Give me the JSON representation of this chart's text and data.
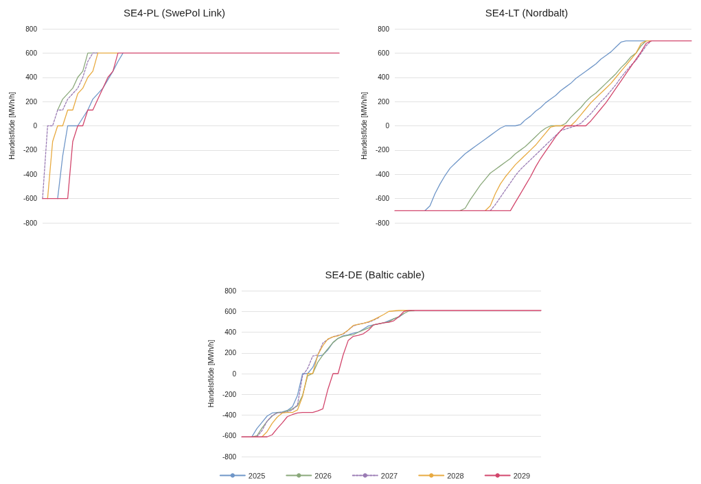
{
  "chart_data": [
    {
      "type": "line",
      "title": "SE4-PL (SwePol Link)",
      "ylabel": "Handelsflöde [MWh/h]",
      "ylim": [
        -800,
        800
      ],
      "yticks": [
        -800,
        -600,
        -400,
        -200,
        0,
        200,
        400,
        600,
        800
      ],
      "grid": "y",
      "tick_labels": "y",
      "marker": "none",
      "categories": [
        null,
        null,
        null,
        null,
        null,
        null,
        null,
        null,
        null,
        null,
        null,
        null,
        null,
        null,
        null,
        null,
        null,
        null,
        null,
        null,
        null,
        null,
        null,
        null,
        null,
        null,
        null,
        null,
        null,
        null,
        null,
        null,
        null,
        null,
        null,
        null,
        null,
        null,
        null,
        null,
        null,
        null,
        null,
        null,
        null,
        null,
        null,
        null,
        null,
        null,
        null,
        null,
        null,
        null,
        null,
        null,
        null,
        null,
        null,
        null
      ],
      "series": [
        {
          "color": "#6f96c8",
          "values": [
            null,
            null,
            null,
            -600,
            -250,
            0,
            0,
            0,
            null,
            130,
            220,
            265,
            310,
            null,
            450,
            530,
            600,
            null,
            null,
            null,
            null,
            null,
            null,
            null,
            null,
            null,
            null,
            null,
            null,
            null,
            null,
            null,
            null,
            null,
            null,
            null,
            null,
            null,
            null,
            null,
            null,
            null,
            null,
            null,
            null,
            null,
            null,
            null,
            null,
            null,
            null,
            null,
            null,
            null,
            null,
            null,
            null,
            null,
            null,
            null
          ]
        },
        {
          "color": "#8aa87a",
          "values": [
            null,
            null,
            null,
            130,
            220,
            265,
            310,
            400,
            450,
            600,
            600,
            600,
            null,
            null,
            null,
            null,
            null,
            null,
            null,
            null,
            null,
            null,
            null,
            null,
            null,
            null,
            null,
            null,
            null,
            null,
            null,
            null,
            null,
            null,
            null,
            null,
            null,
            null,
            null,
            null,
            null,
            null,
            null,
            null,
            null,
            null,
            null,
            null,
            null,
            null,
            null,
            null,
            null,
            null,
            null,
            null,
            null,
            null,
            null,
            null
          ]
        },
        {
          "color": "#9a7bb4",
          "line_style": "dashed",
          "values": [
            -600,
            0,
            0,
            130,
            130,
            220,
            265,
            310,
            400,
            530,
            600,
            600,
            null,
            null,
            null,
            null,
            null,
            null,
            null,
            null,
            null,
            null,
            null,
            null,
            null,
            null,
            null,
            null,
            null,
            null,
            null,
            null,
            null,
            null,
            null,
            null,
            null,
            null,
            null,
            null,
            null,
            null,
            null,
            null,
            null,
            null,
            null,
            null,
            null,
            null,
            null,
            null,
            null,
            null,
            null,
            null,
            null,
            null,
            null,
            null
          ]
        },
        {
          "color": "#e8aa40",
          "values": [
            null,
            -600,
            -130,
            0,
            0,
            130,
            130,
            265,
            310,
            400,
            450,
            600,
            600,
            600,
            600,
            600,
            null,
            null,
            null,
            null,
            null,
            null,
            null,
            null,
            null,
            null,
            null,
            null,
            null,
            null,
            null,
            null,
            null,
            null,
            null,
            null,
            null,
            null,
            null,
            null,
            null,
            null,
            null,
            null,
            null,
            null,
            null,
            null,
            null,
            null,
            null,
            null,
            null,
            null,
            null,
            null,
            null,
            null,
            null,
            null
          ]
        },
        {
          "color": "#d2466c",
          "values": [
            -600,
            -600,
            -600,
            -600,
            -600,
            -600,
            -130,
            0,
            0,
            130,
            130,
            220,
            310,
            400,
            450,
            600,
            600,
            600,
            600,
            600,
            600,
            600,
            600,
            600,
            600,
            600,
            600,
            600,
            600,
            600,
            600,
            600,
            600,
            600,
            600,
            600,
            600,
            600,
            600,
            600,
            600,
            600,
            600,
            600,
            600,
            600,
            600,
            600,
            600,
            600,
            600,
            600,
            600,
            600,
            600,
            600,
            600,
            600,
            600,
            600
          ]
        }
      ]
    },
    {
      "type": "line",
      "title": "SE4-LT (Nordbalt)",
      "ylabel": "Handelsflöde [MWh/h]",
      "ylim": [
        -800,
        800
      ],
      "yticks": [
        -800,
        -600,
        -400,
        -200,
        0,
        200,
        400,
        600,
        800
      ],
      "grid": "y",
      "tick_labels": "y",
      "marker": "none",
      "categories": [
        null,
        null,
        null,
        null,
        null,
        null,
        null,
        null,
        null,
        null,
        null,
        null,
        null,
        null,
        null,
        null,
        null,
        null,
        null,
        null,
        null,
        null,
        null,
        null,
        null,
        null,
        null,
        null,
        null,
        null,
        null,
        null,
        null,
        null,
        null,
        null,
        null,
        null,
        null,
        null,
        null,
        null,
        null,
        null,
        null,
        null,
        null,
        null,
        null,
        null,
        null,
        null,
        null,
        null,
        null,
        null,
        null,
        null,
        null,
        null
      ],
      "series": [
        {
          "color": "#6f96c8",
          "values": [
            null,
            null,
            null,
            null,
            null,
            null,
            -700,
            -660,
            -560,
            -480,
            -410,
            -350,
            -310,
            -270,
            -230,
            -200,
            -170,
            -140,
            -110,
            -80,
            -50,
            -20,
            0,
            0,
            0,
            10,
            50,
            80,
            120,
            150,
            190,
            220,
            250,
            290,
            320,
            350,
            390,
            420,
            450,
            480,
            510,
            550,
            580,
            610,
            650,
            690,
            700,
            700,
            700,
            700,
            700,
            null,
            null,
            null,
            null,
            null,
            null,
            null,
            null,
            null
          ]
        },
        {
          "color": "#8aa87a",
          "values": [
            null,
            null,
            null,
            null,
            null,
            null,
            null,
            null,
            null,
            null,
            null,
            null,
            null,
            -700,
            -680,
            -610,
            -550,
            -490,
            -440,
            -390,
            -360,
            -330,
            -300,
            -270,
            -230,
            -200,
            -170,
            -130,
            -90,
            -50,
            -20,
            0,
            0,
            0,
            20,
            70,
            110,
            150,
            200,
            240,
            270,
            310,
            350,
            390,
            430,
            480,
            520,
            570,
            600,
            660,
            700,
            null,
            null,
            null,
            null,
            null,
            null,
            null,
            null,
            null
          ]
        },
        {
          "color": "#9a7bb4",
          "line_style": "dashed",
          "values": [
            null,
            null,
            null,
            null,
            null,
            null,
            null,
            null,
            null,
            null,
            null,
            null,
            null,
            null,
            null,
            null,
            null,
            null,
            null,
            -700,
            -650,
            -590,
            -530,
            -470,
            -410,
            -360,
            -320,
            -280,
            -240,
            -200,
            -160,
            -120,
            -80,
            -40,
            null,
            null,
            0,
            20,
            60,
            100,
            150,
            200,
            240,
            290,
            340,
            400,
            450,
            500,
            540,
            600,
            660,
            700,
            null,
            null,
            null,
            null,
            null,
            null,
            null,
            null
          ]
        },
        {
          "color": "#e8aa40",
          "values": [
            null,
            null,
            null,
            null,
            null,
            null,
            null,
            null,
            null,
            null,
            null,
            null,
            null,
            null,
            null,
            null,
            null,
            null,
            -700,
            -660,
            -560,
            -480,
            -420,
            -370,
            -320,
            -280,
            -240,
            -200,
            -160,
            -110,
            -60,
            -10,
            0,
            0,
            0,
            0,
            40,
            90,
            140,
            190,
            230,
            270,
            310,
            350,
            400,
            450,
            500,
            550,
            600,
            680,
            700,
            700,
            null,
            null,
            null,
            null,
            null,
            null,
            null,
            null
          ]
        },
        {
          "color": "#d2466c",
          "values": [
            -700,
            -700,
            -700,
            -700,
            -700,
            -700,
            -700,
            -700,
            -700,
            -700,
            -700,
            -700,
            -700,
            -700,
            -700,
            -700,
            -700,
            -700,
            -700,
            -700,
            -700,
            -700,
            -700,
            -700,
            -630,
            -560,
            -490,
            -420,
            -340,
            -270,
            -210,
            -150,
            -90,
            -40,
            0,
            0,
            0,
            0,
            0,
            40,
            90,
            140,
            190,
            250,
            310,
            370,
            430,
            490,
            550,
            610,
            680,
            700,
            700,
            700,
            700,
            700,
            700,
            700,
            700,
            700
          ]
        }
      ]
    },
    {
      "type": "line",
      "title": "SE4-DE (Baltic cable)",
      "ylabel": "Handelsflöde [MWh/h]",
      "ylim": [
        -800,
        800
      ],
      "yticks": [
        -800,
        -600,
        -400,
        -200,
        0,
        200,
        400,
        600,
        800
      ],
      "grid": "y",
      "tick_labels": "y",
      "marker": "none",
      "legend": "bottom",
      "categories": [
        null,
        null,
        null,
        null,
        null,
        null,
        null,
        null,
        null,
        null,
        null,
        null,
        null,
        null,
        null,
        null,
        null,
        null,
        null,
        null,
        null,
        null,
        null,
        null,
        null,
        null,
        null,
        null,
        null,
        null,
        null,
        null,
        null,
        null,
        null,
        null,
        null,
        null,
        null,
        null,
        null,
        null,
        null,
        null,
        null,
        null,
        null,
        null,
        null,
        null,
        null,
        null,
        null,
        null,
        null,
        null,
        null,
        null,
        null,
        null
      ],
      "series": [
        {
          "name": "2025",
          "color": "#6f96c8",
          "values": [
            null,
            null,
            -610,
            -530,
            -470,
            -410,
            -380,
            -375,
            -370,
            -355,
            -320,
            -210,
            0,
            0,
            60,
            170,
            180,
            230,
            300,
            340,
            365,
            375,
            390,
            400,
            430,
            460,
            470,
            null,
            490,
            510,
            530,
            545,
            580,
            null,
            null,
            null,
            null,
            null,
            null,
            null,
            null,
            null,
            null,
            null,
            null,
            null,
            null,
            null,
            null,
            null,
            null,
            null,
            null,
            null,
            null,
            null,
            null,
            null,
            null,
            null
          ]
        },
        {
          "name": "2026",
          "color": "#8aa87a",
          "values": [
            null,
            null,
            -610,
            -600,
            -525,
            -460,
            -410,
            -375,
            -375,
            -360,
            -340,
            -310,
            -210,
            -20,
            0,
            110,
            180,
            240,
            300,
            340,
            360,
            370,
            375,
            400,
            420,
            440,
            470,
            480,
            490,
            500,
            530,
            550,
            580,
            605,
            610,
            null,
            null,
            null,
            null,
            null,
            null,
            null,
            null,
            null,
            null,
            null,
            null,
            null,
            null,
            null,
            null,
            null,
            null,
            null,
            null,
            null,
            null,
            null,
            null,
            null
          ]
        },
        {
          "name": "2027",
          "color": "#9a7bb4",
          "line_style": "dashed",
          "values": [
            null,
            null,
            null,
            -610,
            -550,
            -460,
            -405,
            -380,
            -375,
            -370,
            -350,
            -300,
            -20,
            50,
            170,
            180,
            295,
            330,
            355,
            370,
            380,
            420,
            460,
            475,
            485,
            495,
            515,
            540,
            null,
            null,
            null,
            null,
            null,
            null,
            null,
            null,
            null,
            null,
            null,
            null,
            null,
            null,
            null,
            null,
            null,
            null,
            null,
            null,
            null,
            null,
            null,
            null,
            null,
            null,
            null,
            null,
            null,
            null,
            null,
            null
          ]
        },
        {
          "name": "2028",
          "color": "#e8aa40",
          "values": [
            null,
            null,
            null,
            null,
            -610,
            -560,
            -480,
            -420,
            -380,
            -375,
            -375,
            -350,
            -220,
            0,
            0,
            180,
            270,
            335,
            355,
            365,
            385,
            420,
            465,
            475,
            485,
            500,
            520,
            545,
            570,
            600,
            605,
            610,
            610,
            610,
            null,
            null,
            null,
            null,
            null,
            null,
            null,
            null,
            null,
            null,
            null,
            null,
            null,
            null,
            null,
            null,
            null,
            null,
            null,
            null,
            null,
            null,
            null,
            null,
            null,
            null
          ]
        },
        {
          "name": "2029",
          "color": "#d2466c",
          "values": [
            -610,
            -610,
            -610,
            -610,
            -610,
            -610,
            -590,
            -530,
            -475,
            -415,
            -395,
            -380,
            -375,
            -375,
            -375,
            -360,
            -340,
            -150,
            0,
            0,
            180,
            320,
            360,
            370,
            385,
            420,
            470,
            480,
            490,
            495,
            510,
            550,
            600,
            610,
            610,
            610,
            610,
            610,
            610,
            610,
            610,
            610,
            610,
            610,
            610,
            610,
            610,
            610,
            610,
            610,
            610,
            610,
            610,
            610,
            610,
            610,
            610,
            610,
            610,
            610
          ]
        }
      ]
    }
  ]
}
